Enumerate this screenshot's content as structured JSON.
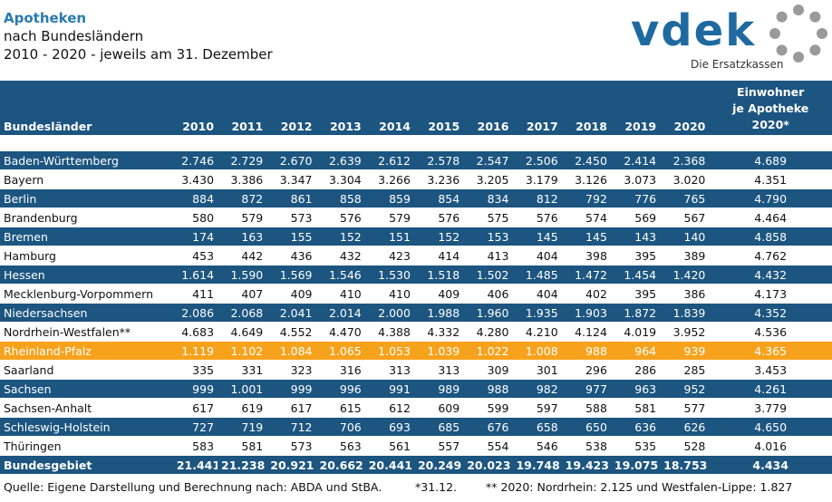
{
  "title": {
    "main": "Apotheken",
    "line2": "nach Bundesländern",
    "line3": "2010 - 2020 - jeweils am 31. Dezember"
  },
  "logo": {
    "text": "vdek",
    "tagline": "Die Ersatzkassen"
  },
  "table": {
    "header_region": "Bundesländer",
    "years": [
      "2010",
      "2011",
      "2012",
      "2013",
      "2014",
      "2015",
      "2016",
      "2017",
      "2018",
      "2019",
      "2020"
    ],
    "header_ew": [
      "Einwohner",
      "je Apotheke",
      "2020*"
    ],
    "rows": [
      {
        "name": "Baden-Württemberg",
        "values": [
          "2.746",
          "2.729",
          "2.670",
          "2.639",
          "2.612",
          "2.578",
          "2.547",
          "2.506",
          "2.450",
          "2.414",
          "2.368"
        ],
        "ew": "4.689",
        "style": "dark"
      },
      {
        "name": "Bayern",
        "values": [
          "3.430",
          "3.386",
          "3.347",
          "3.304",
          "3.266",
          "3.236",
          "3.205",
          "3.179",
          "3.126",
          "3.073",
          "3.020"
        ],
        "ew": "4.351",
        "style": "light"
      },
      {
        "name": "Berlin",
        "values": [
          "884",
          "872",
          "861",
          "858",
          "859",
          "854",
          "834",
          "812",
          "792",
          "776",
          "765"
        ],
        "ew": "4.790",
        "style": "dark"
      },
      {
        "name": "Brandenburg",
        "values": [
          "580",
          "579",
          "573",
          "576",
          "579",
          "576",
          "575",
          "576",
          "574",
          "569",
          "567"
        ],
        "ew": "4.464",
        "style": "light"
      },
      {
        "name": "Bremen",
        "values": [
          "174",
          "163",
          "155",
          "152",
          "151",
          "152",
          "153",
          "145",
          "145",
          "143",
          "140"
        ],
        "ew": "4.858",
        "style": "dark"
      },
      {
        "name": "Hamburg",
        "values": [
          "453",
          "442",
          "436",
          "432",
          "423",
          "414",
          "413",
          "404",
          "398",
          "395",
          "389"
        ],
        "ew": "4.762",
        "style": "light"
      },
      {
        "name": "Hessen",
        "values": [
          "1.614",
          "1.590",
          "1.569",
          "1.546",
          "1.530",
          "1.518",
          "1.502",
          "1.485",
          "1.472",
          "1.454",
          "1.420"
        ],
        "ew": "4.432",
        "style": "dark"
      },
      {
        "name": "Mecklenburg-Vorpommern",
        "values": [
          "411",
          "407",
          "409",
          "410",
          "410",
          "409",
          "406",
          "404",
          "402",
          "395",
          "386"
        ],
        "ew": "4.173",
        "style": "light"
      },
      {
        "name": "Niedersachsen",
        "values": [
          "2.086",
          "2.068",
          "2.041",
          "2.014",
          "2.000",
          "1.988",
          "1.960",
          "1.935",
          "1.903",
          "1.872",
          "1.839"
        ],
        "ew": "4.352",
        "style": "dark"
      },
      {
        "name": "Nordrhein-Westfalen**",
        "values": [
          "4.683",
          "4.649",
          "4.552",
          "4.470",
          "4.388",
          "4.332",
          "4.280",
          "4.210",
          "4.124",
          "4.019",
          "3.952"
        ],
        "ew": "4.536",
        "style": "light"
      },
      {
        "name": "Rheinland-Pfalz",
        "values": [
          "1.119",
          "1.102",
          "1.084",
          "1.065",
          "1.053",
          "1.039",
          "1.022",
          "1.008",
          "988",
          "964",
          "939"
        ],
        "ew": "4.365",
        "style": "hl"
      },
      {
        "name": "Saarland",
        "values": [
          "335",
          "331",
          "323",
          "316",
          "313",
          "313",
          "309",
          "301",
          "296",
          "286",
          "285"
        ],
        "ew": "3.453",
        "style": "light"
      },
      {
        "name": "Sachsen",
        "values": [
          "999",
          "1.001",
          "999",
          "996",
          "991",
          "989",
          "988",
          "982",
          "977",
          "963",
          "952"
        ],
        "ew": "4.261",
        "style": "dark"
      },
      {
        "name": "Sachsen-Anhalt",
        "values": [
          "617",
          "619",
          "617",
          "615",
          "612",
          "609",
          "599",
          "597",
          "588",
          "581",
          "577"
        ],
        "ew": "3.779",
        "style": "light"
      },
      {
        "name": "Schleswig-Holstein",
        "values": [
          "727",
          "719",
          "712",
          "706",
          "693",
          "685",
          "676",
          "658",
          "650",
          "636",
          "626"
        ],
        "ew": "4.650",
        "style": "dark"
      },
      {
        "name": "Thüringen",
        "values": [
          "583",
          "581",
          "573",
          "563",
          "561",
          "557",
          "554",
          "546",
          "538",
          "535",
          "528"
        ],
        "ew": "4.016",
        "style": "light"
      }
    ],
    "total": {
      "name": "Bundesgebiet",
      "values": [
        "21.441",
        "21.238",
        "20.921",
        "20.662",
        "20.441",
        "20.249",
        "20.023",
        "19.748",
        "19.423",
        "19.075",
        "18.753"
      ],
      "ew": "4.434"
    }
  },
  "footer": {
    "source": "Quelle: Eigene Darstellung und Berechnung nach: ABDA und StBA.",
    "note1": "*31.12.",
    "note2": "** 2020: Nordrhein: 2.125 und Westfalen-Lippe: 1.827"
  },
  "colors": {
    "header_blue": "#1c5580",
    "highlight_orange": "#f7a21c",
    "title_blue": "#2a7ab0",
    "logo_blue": "#1e6aa0",
    "logo_gray": "#9a9a9a"
  }
}
